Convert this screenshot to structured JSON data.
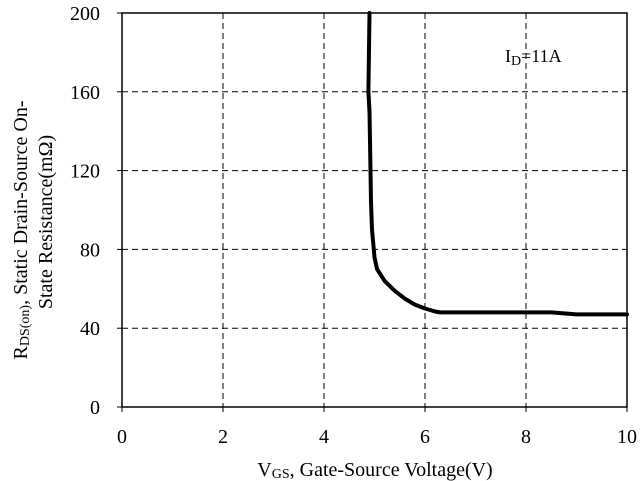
{
  "chart_data": {
    "type": "line",
    "xlabel": {
      "main": "V",
      "sub": "GS",
      "rest": ", Gate-Source Voltage(V)"
    },
    "ylabel": {
      "line1_main": "R",
      "line1_sub": "DS(on)",
      "line1_rest": ", Static Drain-Source On-",
      "line2": "State Resistance(mΩ)"
    },
    "annotation": {
      "main": "I",
      "sub": "D",
      "rest": "=11A"
    },
    "xlim": [
      0,
      10
    ],
    "ylim": [
      0,
      200
    ],
    "xticks": [
      0,
      2,
      4,
      6,
      8,
      10
    ],
    "yticks": [
      0,
      40,
      80,
      120,
      160,
      200
    ],
    "grid": true,
    "series": [
      {
        "x": [
          4.9,
          4.88,
          4.9,
          4.92,
          4.93,
          4.95,
          5.0,
          5.05,
          5.2,
          5.4,
          5.6,
          5.8,
          6.0,
          6.2,
          6.3,
          7.0,
          8.0,
          8.5,
          9.0,
          9.5,
          10.0
        ],
        "y": [
          200,
          160,
          150,
          120,
          104,
          90,
          76,
          70,
          64,
          59,
          55,
          52,
          50,
          48.5,
          48,
          48,
          48,
          48,
          47,
          47,
          47
        ]
      }
    ]
  }
}
